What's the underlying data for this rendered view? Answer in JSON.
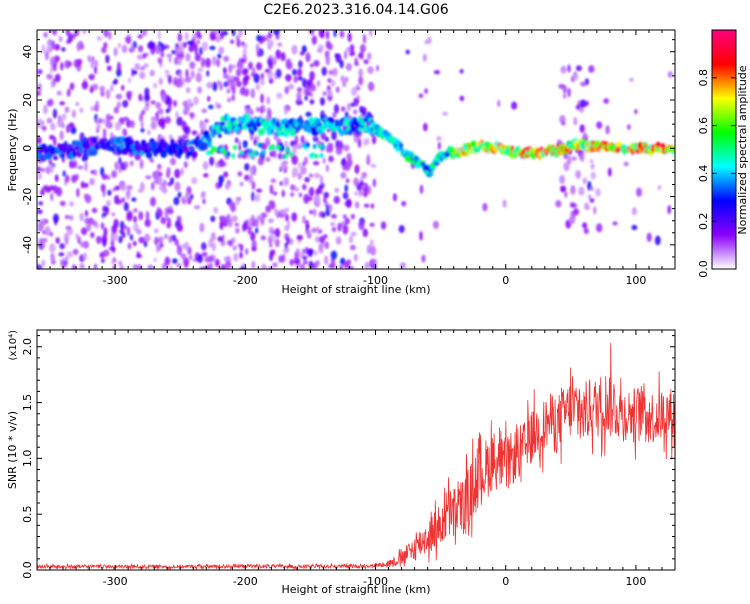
{
  "title": "C2E6.2023.316.04.14.G06",
  "chart_data": [
    {
      "type": "heatmap",
      "xlabel": "Height of straight line (km)",
      "ylabel": "Frequency (Hz)",
      "xlim": [
        -360,
        130
      ],
      "ylim": [
        -50,
        49
      ],
      "x_ticks": [
        -300,
        -200,
        -100,
        0,
        100
      ],
      "y_ticks": [
        -40,
        -20,
        0,
        20,
        40
      ],
      "colorbar": {
        "label": "Normalized spectral amplitude",
        "range": [
          0,
          1
        ],
        "ticks": [
          "0.0",
          "0.2",
          "0.4",
          "0.6",
          "0.8"
        ],
        "colors": [
          "#ffffff",
          "#8a00ff",
          "#0000ff",
          "#00ffff",
          "#00ff00",
          "#ffff00",
          "#ff0000",
          "#ff0080"
        ]
      },
      "ridge": {
        "x": [
          -360,
          -330,
          -300,
          -270,
          -240,
          -215,
          -200,
          -180,
          -160,
          -140,
          -120,
          -105,
          -95,
          -85,
          -75,
          -65,
          -58,
          -52,
          -45,
          -35,
          -20,
          -5,
          10,
          30,
          45,
          55,
          65,
          75,
          95,
          110,
          130
        ],
        "y": [
          -2,
          0,
          1,
          0,
          0,
          10,
          10,
          9,
          9,
          10,
          9,
          10,
          6,
          2,
          -3,
          -7,
          -10,
          -4,
          -2,
          -1,
          1,
          0,
          -2,
          -2,
          0,
          2,
          1,
          1,
          0,
          0,
          0
        ]
      }
    },
    {
      "type": "line",
      "xlabel": "Height of straight line (km)",
      "ylabel": "SNR (10 * v/v)",
      "y_scale_label": "(x10⁴)",
      "xlim": [
        -360,
        130
      ],
      "ylim": [
        0,
        2.15
      ],
      "x_ticks": [
        -300,
        -200,
        -100,
        0,
        100
      ],
      "y_ticks": [
        "0.0",
        "0.5",
        "1.0",
        "1.5",
        "2.0"
      ],
      "line_color": "#ee3333",
      "series": [
        {
          "x": [
            -360,
            -300,
            -250,
            -200,
            -150,
            -110,
            -100,
            -90,
            -80,
            -70,
            -60,
            -50,
            -45,
            -40,
            -30,
            -25,
            -20,
            -15,
            -10,
            -5,
            0,
            5,
            10,
            15,
            20,
            25,
            30,
            35,
            40,
            45,
            50,
            55,
            60,
            65,
            70,
            75,
            80,
            85,
            90,
            95,
            100,
            105,
            110,
            115,
            120,
            125,
            130
          ],
          "y": [
            0.03,
            0.03,
            0.03,
            0.035,
            0.03,
            0.035,
            0.04,
            0.06,
            0.1,
            0.2,
            0.3,
            0.4,
            0.5,
            0.5,
            0.6,
            0.75,
            0.9,
            0.9,
            1.0,
            0.95,
            0.95,
            1.0,
            1.05,
            1.1,
            1.2,
            1.25,
            1.3,
            1.35,
            1.3,
            1.4,
            1.45,
            1.4,
            1.4,
            1.45,
            1.45,
            1.5,
            1.5,
            1.45,
            1.4,
            1.4,
            1.4,
            1.45,
            1.4,
            1.35,
            1.4,
            1.4,
            1.4
          ],
          "noise": [
            0.02,
            0.02,
            0.02,
            0.02,
            0.02,
            0.02,
            0.02,
            0.04,
            0.08,
            0.15,
            0.2,
            0.25,
            0.3,
            0.3,
            0.35,
            0.35,
            0.45,
            0.35,
            0.35,
            0.3,
            0.3,
            0.3,
            0.3,
            0.3,
            0.3,
            0.3,
            0.3,
            0.3,
            0.35,
            0.3,
            0.35,
            0.35,
            0.35,
            0.35,
            0.35,
            0.35,
            0.4,
            0.35,
            0.3,
            0.3,
            0.3,
            0.3,
            0.3,
            0.3,
            0.3,
            0.3,
            0.3
          ]
        }
      ]
    }
  ]
}
